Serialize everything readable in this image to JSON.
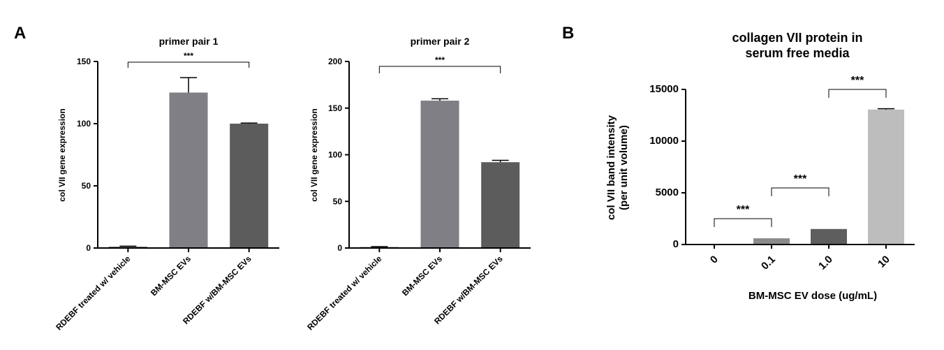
{
  "panels": {
    "a_label": "A",
    "b_label": "B"
  },
  "chart_data": [
    {
      "type": "bar",
      "title": "primer pair 1",
      "ylabel": "col VII gene expression",
      "xlabel": "",
      "categories": [
        "RDEBF treated w/ vehicle",
        "BM-MSC EVs",
        "RDEBF w/BM-MSC EVs"
      ],
      "values": [
        1,
        125,
        100
      ],
      "errors": [
        0.5,
        12,
        0.5
      ],
      "ylim": [
        0,
        150
      ],
      "yticks": [
        0,
        50,
        100,
        150
      ],
      "bar_colors": [
        "#555555",
        "#7f7f85",
        "#5c5c5c"
      ],
      "significance": [
        {
          "from": 0,
          "to": 2,
          "label": "***"
        }
      ]
    },
    {
      "type": "bar",
      "title": "primer pair 2",
      "ylabel": "col VII gene expression",
      "xlabel": "",
      "categories": [
        "RDEBF treated w/ vehicle",
        "BM-MSC EVs",
        "RDEBF w/BM-MSC EVs"
      ],
      "values": [
        1,
        158,
        92
      ],
      "errors": [
        0.5,
        2,
        2
      ],
      "ylim": [
        0,
        200
      ],
      "yticks": [
        0,
        50,
        100,
        150,
        200
      ],
      "bar_colors": [
        "#555555",
        "#7f7f85",
        "#5c5c5c"
      ],
      "significance": [
        {
          "from": 0,
          "to": 2,
          "label": "***"
        }
      ]
    },
    {
      "type": "bar",
      "title": "collagen VII protein in serum free media",
      "title_lines": [
        "collagen VII protein in",
        "serum free media"
      ],
      "ylabel": "col VII band intensity (per unit volume)",
      "ylabel_lines": [
        "col VII band intensity",
        "(per unit volume)"
      ],
      "xlabel": "BM-MSC EV dose (ug/mL)",
      "categories": [
        "0",
        "0.1",
        "1.0",
        "10"
      ],
      "values": [
        0,
        600,
        1500,
        13050
      ],
      "errors": [
        0,
        0,
        0,
        80
      ],
      "ylim": [
        0,
        15000
      ],
      "yticks": [
        0,
        5000,
        10000,
        15000
      ],
      "bar_colors": [
        "#8a8a8a",
        "#8a8a8a",
        "#5e5e5e",
        "#bdbdbd"
      ],
      "significance": [
        {
          "from": 0,
          "to": 1,
          "label": "***"
        },
        {
          "from": 1,
          "to": 2,
          "label": "***"
        },
        {
          "from": 2,
          "to": 3,
          "label": "***"
        }
      ]
    }
  ]
}
